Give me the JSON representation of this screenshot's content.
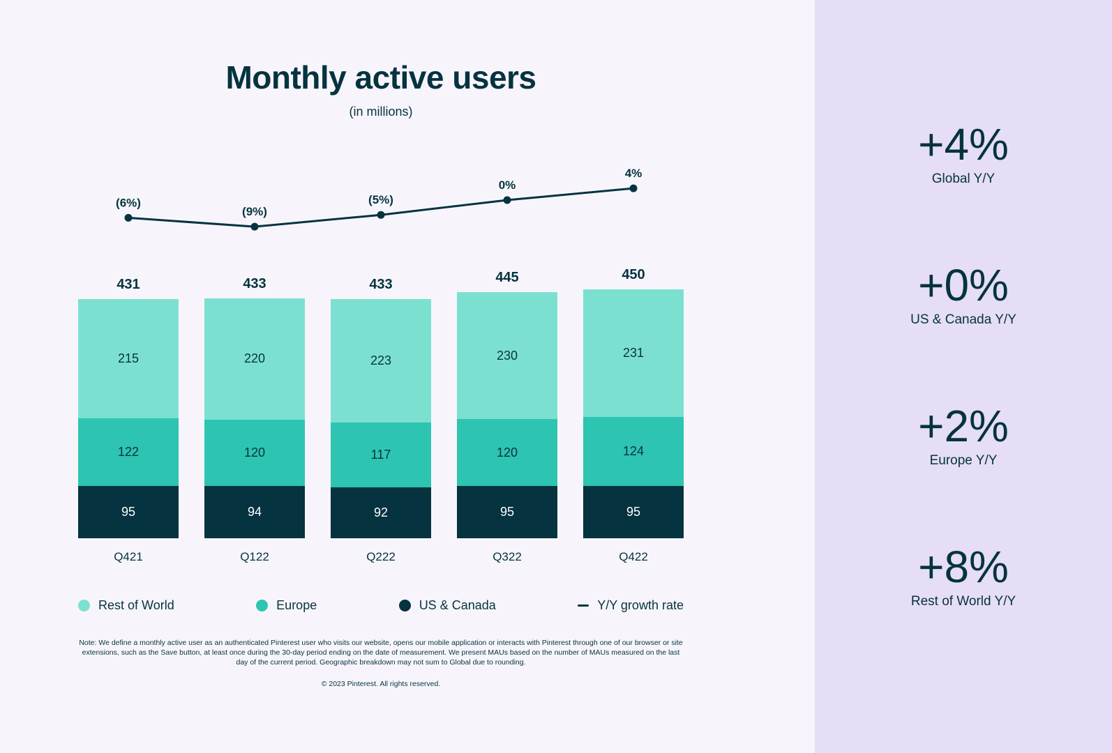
{
  "title": "Monthly active users",
  "subtitle": "(in millions)",
  "colors": {
    "page_bg": "#F7F5FB",
    "panel_bg": "#E6DDF7",
    "ink": "#05333F"
  },
  "chart_data": {
    "type": "bar",
    "stacked": true,
    "title": "Monthly active users",
    "subtitle": "(in millions)",
    "axes_hidden": true,
    "grid": false,
    "value_labels": true,
    "categories": [
      "Q421",
      "Q122",
      "Q222",
      "Q322",
      "Q422"
    ],
    "series": [
      {
        "name": "US & Canada",
        "color": "#05333F",
        "label_color": "#FFFFFF",
        "values": [
          95,
          94,
          92,
          95,
          95
        ]
      },
      {
        "name": "Europe",
        "color": "#2EC4B2",
        "label_color": "#05333F",
        "values": [
          122,
          120,
          117,
          120,
          124
        ]
      },
      {
        "name": "Rest of World",
        "color": "#7CE0D0",
        "label_color": "#05333F",
        "values": [
          215,
          220,
          223,
          230,
          231
        ]
      }
    ],
    "totals": [
      431,
      433,
      433,
      445,
      450
    ],
    "ylim": [
      0,
      450
    ],
    "growth_line": {
      "name": "Y/Y growth rate",
      "color": "#05333F",
      "values": [
        -6,
        -9,
        -5,
        0,
        4
      ],
      "labels": [
        "(6%)",
        "(9%)",
        "(5%)",
        "0%",
        "4%"
      ]
    },
    "legend": [
      {
        "label": "Rest of World",
        "swatch": "circle",
        "color": "#7CE0D0"
      },
      {
        "label": "Europe",
        "swatch": "circle",
        "color": "#2EC4B2"
      },
      {
        "label": "US & Canada",
        "swatch": "circle",
        "color": "#05333F"
      },
      {
        "label": "Y/Y growth rate",
        "swatch": "dash",
        "color": "#05333F"
      }
    ],
    "legend_position": "bottom"
  },
  "right_panel": {
    "stats": [
      {
        "value": "+4%",
        "label": "Global Y/Y"
      },
      {
        "value": "+0%",
        "label": "US & Canada Y/Y"
      },
      {
        "value": "+2%",
        "label": "Europe Y/Y"
      },
      {
        "value": "+8%",
        "label": "Rest of World Y/Y"
      }
    ]
  },
  "footer": {
    "note": "Note: We define a monthly active user as an authenticated Pinterest user who visits our website, opens our mobile application or interacts with Pinterest through one of our browser or site extensions, such as the Save button, at least once during the 30-day period ending on the date of measurement. We present MAUs based on the number of MAUs measured on the last day of the current period. Geographic breakdown may not sum to Global due to rounding.",
    "copyright": "© 2023 Pinterest. All rights reserved."
  }
}
